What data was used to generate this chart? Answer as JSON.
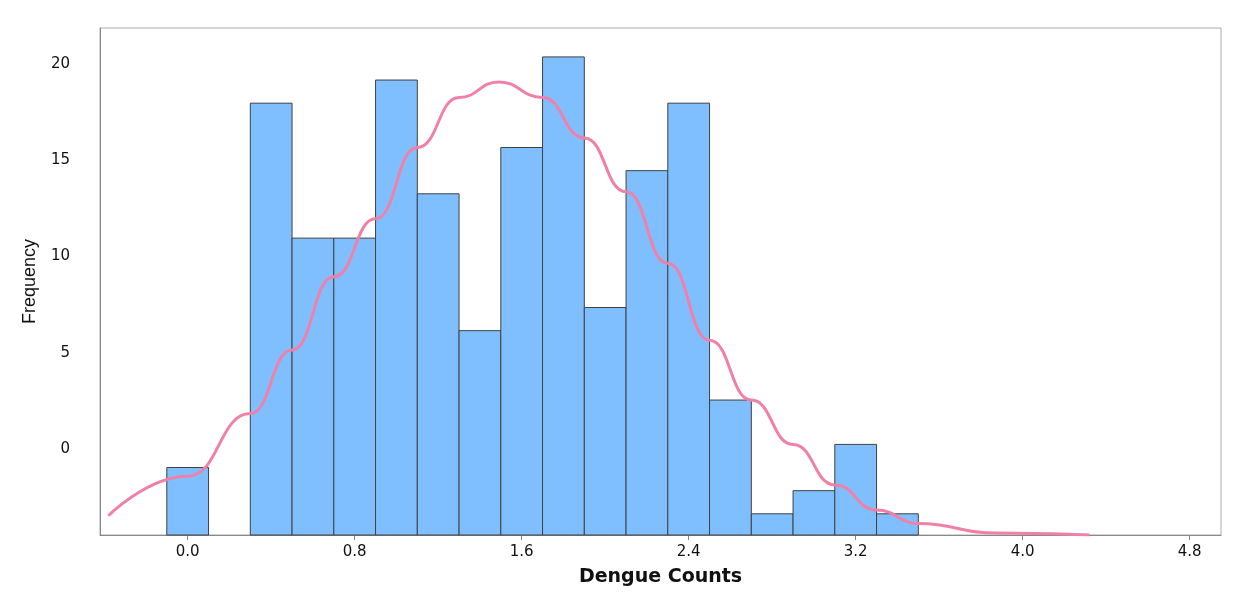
{
  "chart_data": {
    "type": "bar",
    "xlabel": "Dengue Counts",
    "ylabel": "Frequency",
    "x": [
      0.0,
      0.2,
      0.4,
      0.6,
      0.8,
      1.0,
      1.2,
      1.4,
      1.6,
      1.8,
      2.0,
      2.2,
      2.4,
      2.6,
      2.8,
      3.0,
      3.2,
      3.4
    ],
    "base": [
      -4.5,
      null,
      -4.5,
      -4.5,
      -4.5,
      -4.5,
      -4.5,
      -4.5,
      -4.5,
      -4.5,
      -4.5,
      -4.5,
      -4.5,
      -4.5,
      -4.5,
      -4.5,
      -4.5,
      -4.5
    ],
    "values": [
      3.5,
      null,
      22.4,
      15.4,
      15.4,
      23.6,
      17.7,
      10.6,
      20.1,
      24.8,
      11.8,
      18.9,
      22.4,
      7.0,
      1.1,
      2.3,
      4.7,
      1.1
    ],
    "color": "#80bfff",
    "series": [
      {
        "type": "line",
        "color": "#f080a8",
        "x": [
          -0.38,
          0.0,
          0.3,
          0.5,
          0.7,
          0.9,
          1.1,
          1.3,
          1.49,
          1.7,
          1.9,
          2.1,
          2.3,
          2.5,
          2.7,
          2.9,
          3.1,
          3.3,
          3.5,
          3.87,
          4.32
        ],
        "values": [
          -3.5,
          -1.45,
          1.8,
          5.1,
          8.9,
          11.9,
          15.6,
          18.2,
          19.0,
          18.2,
          16.1,
          13.3,
          9.6,
          5.6,
          2.5,
          0.2,
          -1.9,
          -3.2,
          -3.9,
          -4.4,
          -4.5
        ]
      }
    ],
    "xlim": [
      -0.42,
      4.95
    ],
    "ylim": [
      -4.5,
      21.8
    ],
    "xticks": [
      {
        "value": 0,
        "label": "0.0"
      },
      {
        "value": 0.8,
        "label": "0.8"
      },
      {
        "value": 1.6,
        "label": "1.6"
      },
      {
        "value": 2.4,
        "label": "2.4"
      },
      {
        "value": 3.2,
        "label": "3.2"
      },
      {
        "value": 4.0,
        "label": "4.0"
      },
      {
        "value": 4.8,
        "label": "4.8"
      }
    ],
    "yticks": [
      0,
      5,
      10,
      15,
      20
    ],
    "grid": false
  }
}
